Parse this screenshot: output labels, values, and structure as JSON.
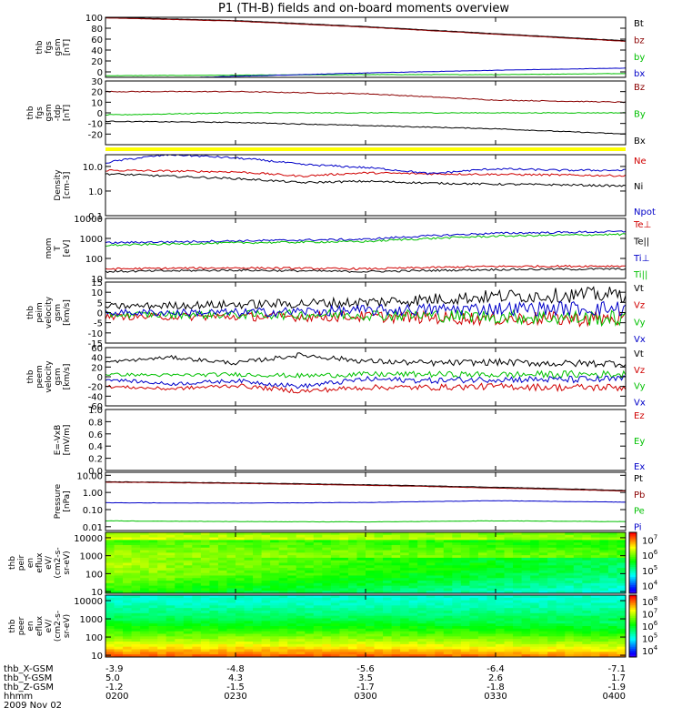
{
  "title": "P1 (TH-B) fields and on-board moments overview",
  "colors": {
    "black": "#000000",
    "red": "#d00000",
    "darkred": "#8b0000",
    "green": "#00c000",
    "blue": "#0000c8",
    "yellow": "#ffff00"
  },
  "chart_data": [
    {
      "id": "fgs_gsm",
      "type": "line",
      "ylabel": [
        "thb",
        "fgs",
        "gsm",
        "[nT]"
      ],
      "ylim": [
        -10,
        100
      ],
      "ytick_labels": [
        "100",
        "80",
        "60",
        "40",
        "20",
        "0"
      ],
      "ytick_values": [
        100,
        80,
        60,
        40,
        20,
        0
      ],
      "x": [
        "0200",
        "0230",
        "0300",
        "0330",
        "0400"
      ],
      "series": [
        {
          "name": "Bt",
          "color": "#000000",
          "values": [
            100,
            94,
            83,
            70,
            57
          ]
        },
        {
          "name": "bz",
          "color": "#8b0000",
          "values": [
            99,
            93,
            82,
            69,
            56
          ]
        },
        {
          "name": "by",
          "color": "#00c000",
          "values": [
            -7,
            -6,
            -5,
            -5,
            -3
          ]
        },
        {
          "name": "bx",
          "color": "#0000c8",
          "values": [
            -15,
            -8,
            -2,
            3,
            7
          ]
        }
      ]
    },
    {
      "id": "fgs_tdp",
      "type": "line",
      "ylabel": [
        "thb",
        "fgs",
        "gsm",
        "-tdp",
        "[nT]"
      ],
      "ylim": [
        -30,
        30
      ],
      "ytick_labels": [
        "30",
        "20",
        "10",
        "0",
        "-10",
        "-20"
      ],
      "ytick_values": [
        30,
        20,
        10,
        0,
        -10,
        -20
      ],
      "x": [
        "0200",
        "0230",
        "0300",
        "0330",
        "0400"
      ],
      "series": [
        {
          "name": "Bz",
          "color": "#8b0000",
          "values": [
            20,
            20,
            18,
            12,
            10
          ]
        },
        {
          "name": "By",
          "color": "#00c000",
          "values": [
            -2,
            0,
            0,
            0,
            0
          ]
        },
        {
          "name": "Bx",
          "color": "#000000",
          "values": [
            -8,
            -9,
            -12,
            -15,
            -20
          ]
        }
      ]
    },
    {
      "id": "density",
      "type": "line",
      "ylabel": [
        "Density",
        "[cm-3]"
      ],
      "ylim": [
        0.1,
        30
      ],
      "log": true,
      "ytick_labels": [
        "10.0",
        "1.0",
        "0.1"
      ],
      "ytick_values": [
        10,
        1,
        0.1
      ],
      "x": [
        "0200",
        "0215",
        "0230",
        "0245",
        "0300",
        "0315",
        "0330",
        "0345",
        "0400"
      ],
      "series": [
        {
          "name": "Ne",
          "color": "#d00000",
          "values": [
            7,
            6.5,
            6,
            4,
            5.5,
            5,
            4.8,
            4.5,
            4.2
          ]
        },
        {
          "name": "Ni",
          "color": "#000000",
          "values": [
            5,
            4,
            3.2,
            2.2,
            2.5,
            2.1,
            1.9,
            1.8,
            1.6
          ]
        },
        {
          "name": "Npot",
          "color": "#0000c8",
          "values": [
            14,
            30,
            22,
            12,
            9,
            5,
            8,
            7,
            7
          ]
        }
      ]
    },
    {
      "id": "temperature",
      "type": "line",
      "ylabel": [
        "mom",
        "T",
        "[eV]"
      ],
      "ylim": [
        10,
        10000
      ],
      "log": true,
      "ytick_labels": [
        "10000",
        "1000",
        "100",
        "10"
      ],
      "ytick_values": [
        10000,
        1000,
        100,
        10
      ],
      "x": [
        "0200",
        "0230",
        "0300",
        "0330",
        "0400"
      ],
      "series": [
        {
          "name": "Te⊥",
          "color": "#d00000",
          "values": [
            30,
            34,
            30,
            40,
            42
          ]
        },
        {
          "name": "Te||",
          "color": "#000000",
          "values": [
            22,
            26,
            22,
            28,
            30
          ]
        },
        {
          "name": "Ti⊥",
          "color": "#0000c8",
          "values": [
            600,
            750,
            900,
            1800,
            2200
          ]
        },
        {
          "name": "Ti||",
          "color": "#00c000",
          "values": [
            450,
            600,
            700,
            1300,
            1600
          ]
        }
      ]
    },
    {
      "id": "peim_velocity",
      "type": "line",
      "ylabel": [
        "thb",
        "peim",
        "velocity",
        "gsm",
        "[km/s]"
      ],
      "ylim": [
        -15,
        15
      ],
      "ytick_labels": [
        "15",
        "10",
        "5",
        "0",
        "-5",
        "-10",
        "-15"
      ],
      "ytick_values": [
        15,
        10,
        5,
        0,
        -5,
        -10,
        -15
      ],
      "x": [
        "0200",
        "0230",
        "0300",
        "0330",
        "0400"
      ],
      "series": [
        {
          "name": "Vt",
          "color": "#000000",
          "values": [
            3,
            4,
            5,
            8,
            9
          ]
        },
        {
          "name": "Vz",
          "color": "#d00000",
          "values": [
            -2,
            -2,
            -2,
            -3,
            -3
          ]
        },
        {
          "name": "Vy",
          "color": "#00c000",
          "values": [
            -1,
            -1,
            -1,
            -2,
            -3
          ]
        },
        {
          "name": "Vx",
          "color": "#0000c8",
          "values": [
            0,
            0,
            1,
            2,
            2
          ]
        }
      ]
    },
    {
      "id": "peem_velocity",
      "type": "line",
      "ylabel": [
        "thb",
        "peem",
        "velocity",
        "gsm",
        "[km/s]"
      ],
      "ylim": [
        -60,
        60
      ],
      "ytick_labels": [
        "60",
        "40",
        "20",
        "0",
        "-20",
        "-40",
        "-60"
      ],
      "ytick_values": [
        60,
        40,
        20,
        0,
        -20,
        -40,
        -60
      ],
      "x": [
        "0200",
        "0215",
        "0230",
        "0245",
        "0300",
        "0315",
        "0330",
        "0345",
        "0400"
      ],
      "series": [
        {
          "name": "Vt",
          "color": "#000000",
          "values": [
            30,
            40,
            28,
            45,
            32,
            28,
            30,
            27,
            28
          ]
        },
        {
          "name": "Vz",
          "color": "#d00000",
          "values": [
            -20,
            -25,
            -18,
            -30,
            -22,
            -22,
            -20,
            -22,
            -22
          ]
        },
        {
          "name": "Vy",
          "color": "#00c000",
          "values": [
            5,
            3,
            5,
            2,
            5,
            5,
            4,
            5,
            5
          ]
        },
        {
          "name": "Vx",
          "color": "#0000c8",
          "values": [
            -5,
            -15,
            -8,
            -20,
            -5,
            -8,
            -5,
            -6,
            -5
          ]
        }
      ]
    },
    {
      "id": "e_vxb",
      "type": "line",
      "ylabel": [
        "E=-VxB",
        "[mV/m]"
      ],
      "ylim": [
        0,
        1
      ],
      "ytick_labels": [
        "1.0",
        "0.8",
        "0.6",
        "0.4",
        "0.2",
        "0.0"
      ],
      "ytick_values": [
        1,
        0.8,
        0.6,
        0.4,
        0.2,
        0
      ],
      "series": [
        {
          "name": "Ez",
          "color": "#d00000",
          "values": []
        },
        {
          "name": "Ey",
          "color": "#00c000",
          "values": []
        },
        {
          "name": "Ex",
          "color": "#0000c8",
          "values": []
        }
      ]
    },
    {
      "id": "pressure",
      "type": "line",
      "ylabel": [
        "Pressure",
        "[nPa]"
      ],
      "ylim": [
        0.006,
        15
      ],
      "log": true,
      "ytick_labels": [
        "10.00",
        "1.00",
        "0.10",
        "0.01"
      ],
      "ytick_values": [
        10,
        1,
        0.1,
        0.01
      ],
      "x": [
        "0200",
        "0230",
        "0300",
        "0330",
        "0400"
      ],
      "series": [
        {
          "name": "Pt",
          "color": "#000000",
          "values": [
            4.2,
            3.6,
            2.8,
            2.0,
            1.3
          ]
        },
        {
          "name": "Pb",
          "color": "#8b0000",
          "values": [
            4.0,
            3.4,
            2.6,
            1.8,
            1.2
          ]
        },
        {
          "name": "Pe",
          "color": "#00c000",
          "values": [
            0.022,
            0.02,
            0.019,
            0.022,
            0.02
          ]
        },
        {
          "name": "Pi",
          "color": "#0000c8",
          "values": [
            0.25,
            0.24,
            0.26,
            0.33,
            0.27
          ]
        }
      ]
    },
    {
      "id": "peir_spec",
      "type": "heatmap",
      "ylabel": [
        "thb",
        "peir",
        "en",
        "eflux",
        "eV/",
        "(cm2-s-",
        "sr-eV)"
      ],
      "ylim": [
        8,
        20000
      ],
      "log": true,
      "ytick_labels": [
        "10000",
        "1000",
        "100",
        "10"
      ],
      "ytick_values": [
        10000,
        1000,
        100,
        10
      ],
      "colorbar_labels": [
        "10",
        "10",
        "10",
        "10"
      ],
      "colorbar_exps": [
        "7",
        "6",
        "5",
        "4"
      ],
      "colorbar_values": [
        7,
        6,
        5,
        4
      ]
    },
    {
      "id": "peer_spec",
      "type": "heatmap",
      "ylabel": [
        "thb",
        "peer",
        "en",
        "eflux",
        "eV/",
        "(cm2-s-",
        "sr-eV)"
      ],
      "ylim": [
        8,
        20000
      ],
      "log": true,
      "ytick_labels": [
        "10000",
        "1000",
        "100",
        "10"
      ],
      "ytick_values": [
        10000,
        1000,
        100,
        10
      ],
      "colorbar_labels": [
        "10",
        "10",
        "10",
        "10",
        "10"
      ],
      "colorbar_exps": [
        "8",
        "7",
        "6",
        "5",
        "4"
      ],
      "colorbar_values": [
        8,
        7,
        6,
        5,
        4
      ]
    }
  ],
  "ephemeris": {
    "rows": [
      {
        "label": "thb_X-GSM",
        "values": [
          "-3.9",
          "-4.8",
          "-5.6",
          "-6.4",
          "-7.1"
        ]
      },
      {
        "label": "thb_Y-GSM",
        "values": [
          "5.0",
          "4.3",
          "3.5",
          "2.6",
          "1.7"
        ]
      },
      {
        "label": "thb_Z-GSM",
        "values": [
          "-1.2",
          "-1.5",
          "-1.7",
          "-1.8",
          "-1.9"
        ]
      },
      {
        "label": "hhmm",
        "values": [
          "0200",
          "0230",
          "0300",
          "0330",
          "0400"
        ]
      }
    ],
    "date": "2009 Nov 02"
  }
}
